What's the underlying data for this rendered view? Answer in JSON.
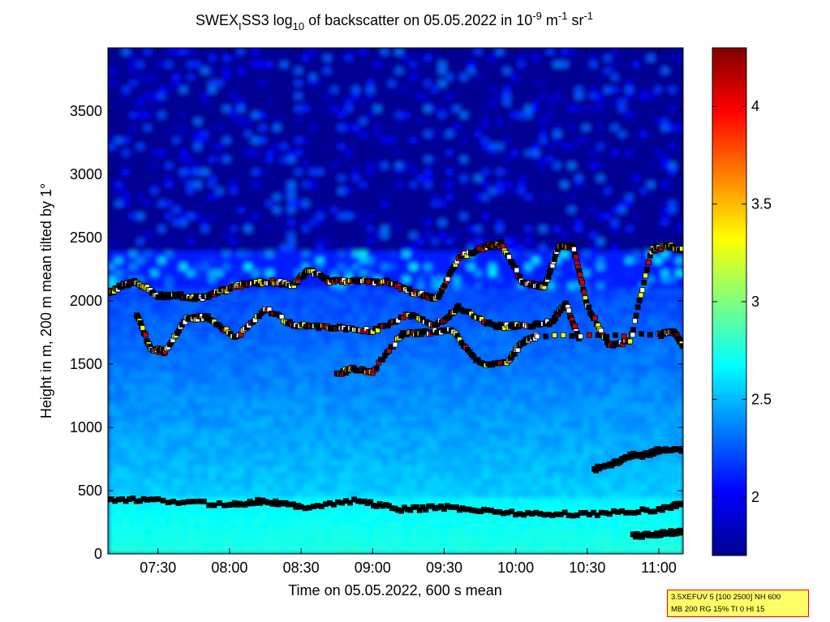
{
  "chart_data": {
    "type": "heatmap",
    "title_parts": {
      "a": "SWEX",
      "a_sub": "I",
      "b": "SS3 log",
      "b_sub": "10",
      "c": " of backscatter on 05.05.2022 in 10",
      "c_sup": "-9",
      "d": " m",
      "d_sup": "-1",
      "e": " sr",
      "e_sup": "-1"
    },
    "xlabel": "Time on 05.05.2022, 600 s mean",
    "ylabel": "Height in m, 200 m mean tilted by 1°",
    "x_range_hours": [
      7.15,
      11.17
    ],
    "x_ticks": [
      {
        "value": 7.5,
        "label": "07:30"
      },
      {
        "value": 8.0,
        "label": "08:00"
      },
      {
        "value": 8.5,
        "label": "08:30"
      },
      {
        "value": 9.0,
        "label": "09:00"
      },
      {
        "value": 9.5,
        "label": "09:30"
      },
      {
        "value": 10.0,
        "label": "10:00"
      },
      {
        "value": 10.5,
        "label": "10:30"
      },
      {
        "value": 11.0,
        "label": "11:00"
      }
    ],
    "ylim": [
      0,
      4000
    ],
    "y_ticks": [
      0,
      500,
      1000,
      1500,
      2000,
      2500,
      3000,
      3500
    ],
    "colorbar": {
      "range": [
        1.7,
        4.3
      ],
      "ticks": [
        2,
        2.5,
        3,
        3.5,
        4
      ],
      "labels": [
        "2",
        "2.5",
        "3",
        "3.5",
        "4"
      ],
      "colormap": "jet"
    },
    "field": {
      "surface_layer_top_m": 430,
      "boundary_layer_top_m": 2100,
      "surface_value": 2.75,
      "mixed_value": 2.55,
      "free_value": 1.75
    },
    "layers": [
      {
        "name": "surface",
        "x": [
          7.15,
          7.5,
          8.0,
          8.25,
          8.5,
          8.9,
          9.2,
          9.5,
          9.8,
          10.2,
          10.6,
          11.0,
          11.17
        ],
        "y": [
          430,
          420,
          390,
          420,
          370,
          420,
          350,
          370,
          340,
          310,
          320,
          350,
          400
        ]
      },
      {
        "name": "elevated",
        "x": [
          10.55,
          10.7,
          10.8,
          10.9,
          11.0,
          11.17
        ],
        "y": [
          670,
          720,
          780,
          780,
          820,
          820
        ]
      },
      {
        "name": "lowest",
        "x": [
          10.82,
          10.95,
          11.05,
          11.17
        ],
        "y": [
          140,
          150,
          170,
          170
        ]
      },
      {
        "name": "bl-top",
        "x": [
          7.15,
          7.25,
          7.35,
          7.5,
          7.65,
          7.8,
          7.95,
          8.1,
          8.3,
          8.45,
          8.55,
          8.7,
          8.9,
          9.1,
          9.3,
          9.45,
          9.6,
          9.8,
          9.9,
          10.05,
          10.2,
          10.3,
          10.4,
          10.5,
          10.65,
          10.8,
          10.95,
          11.05,
          11.17
        ],
        "y": [
          2060,
          2120,
          2150,
          2040,
          2040,
          2020,
          2080,
          2130,
          2150,
          2130,
          2240,
          2160,
          2160,
          2150,
          2060,
          2020,
          2340,
          2430,
          2450,
          2140,
          2110,
          2420,
          2440,
          1960,
          1650,
          1680,
          2400,
          2440,
          2400
        ]
      },
      {
        "name": "mid-1",
        "x": [
          7.35,
          7.45,
          7.55,
          7.7,
          7.85,
          8.05,
          8.25,
          8.45,
          8.65,
          8.8,
          9.0,
          9.25,
          9.45,
          9.6,
          9.85,
          10.05,
          10.25,
          10.35,
          10.45
        ],
        "y": [
          1890,
          1620,
          1600,
          1860,
          1870,
          1710,
          1940,
          1800,
          1800,
          1780,
          1760,
          1890,
          1810,
          1950,
          1800,
          1800,
          1830,
          1980,
          1680
        ]
      },
      {
        "name": "mid-2",
        "x": [
          8.75,
          8.85,
          9.0,
          9.2,
          9.35,
          9.55,
          9.75,
          9.95,
          10.05,
          10.15,
          11.0,
          11.1,
          11.17
        ],
        "y": [
          1420,
          1460,
          1440,
          1730,
          1750,
          1770,
          1500,
          1520,
          1680,
          1720,
          1730,
          1760,
          1650
        ]
      }
    ]
  },
  "info_box": {
    "line1": "3.5XEFUV 5 [100 2500] NH 600",
    "line2": "MB 200 RG 15% TI 0 HI 15"
  }
}
